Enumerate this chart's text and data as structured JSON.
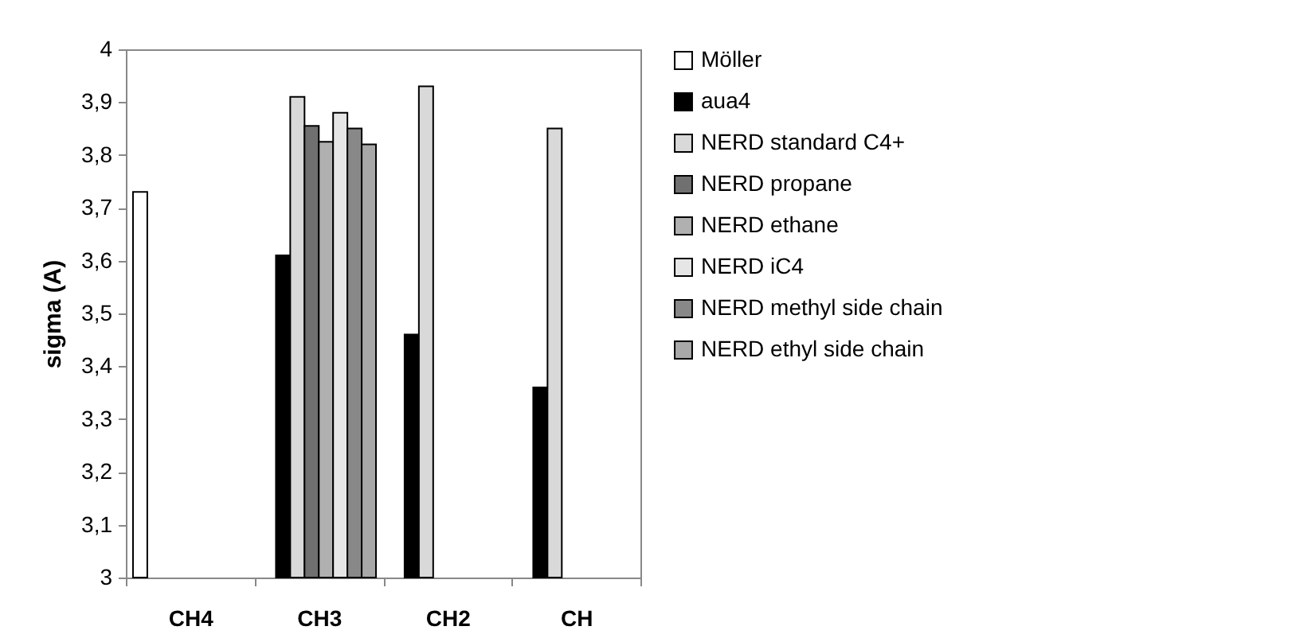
{
  "chart_data": {
    "type": "bar",
    "ylabel": "sigma (A)",
    "categories": [
      "CH4",
      "CH3",
      "CH2",
      "CH"
    ],
    "series": [
      {
        "name": "Möller",
        "color": "#ffffff",
        "values": [
          3.73,
          null,
          null,
          null
        ]
      },
      {
        "name": "aua4",
        "color": "#000000",
        "values": [
          null,
          3.61,
          3.46,
          3.36
        ]
      },
      {
        "name": "NERD standard C4+",
        "color": "#d9d9d9",
        "values": [
          null,
          3.91,
          3.93,
          3.85
        ]
      },
      {
        "name": "NERD propane",
        "color": "#707070",
        "values": [
          null,
          3.855,
          null,
          null
        ]
      },
      {
        "name": "NERD ethane",
        "color": "#b0b0b0",
        "values": [
          null,
          3.825,
          null,
          null
        ]
      },
      {
        "name": "NERD iC4",
        "color": "#e6e6e6",
        "values": [
          null,
          3.88,
          null,
          null
        ]
      },
      {
        "name": "NERD methyl side chain",
        "color": "#888888",
        "values": [
          null,
          3.85,
          null,
          null
        ]
      },
      {
        "name": "NERD ethyl side chain",
        "color": "#a8a8a8",
        "values": [
          null,
          3.82,
          null,
          null
        ]
      }
    ],
    "ylim": [
      3,
      4
    ],
    "yticks": [
      3,
      {
        "value": 3.1,
        "label": "3,1"
      },
      {
        "value": 3.2,
        "label": "3,2"
      },
      {
        "value": 3.3,
        "label": "3,3"
      },
      {
        "value": 3.4,
        "label": "3,4"
      },
      {
        "value": 3.5,
        "label": "3,5"
      },
      {
        "value": 3.6,
        "label": "3,6"
      },
      {
        "value": 3.7,
        "label": "3,7"
      },
      {
        "value": 3.8,
        "label": "3,8"
      },
      {
        "value": 3.9,
        "label": "3,9"
      },
      4
    ],
    "grid": false,
    "legend": "right"
  }
}
